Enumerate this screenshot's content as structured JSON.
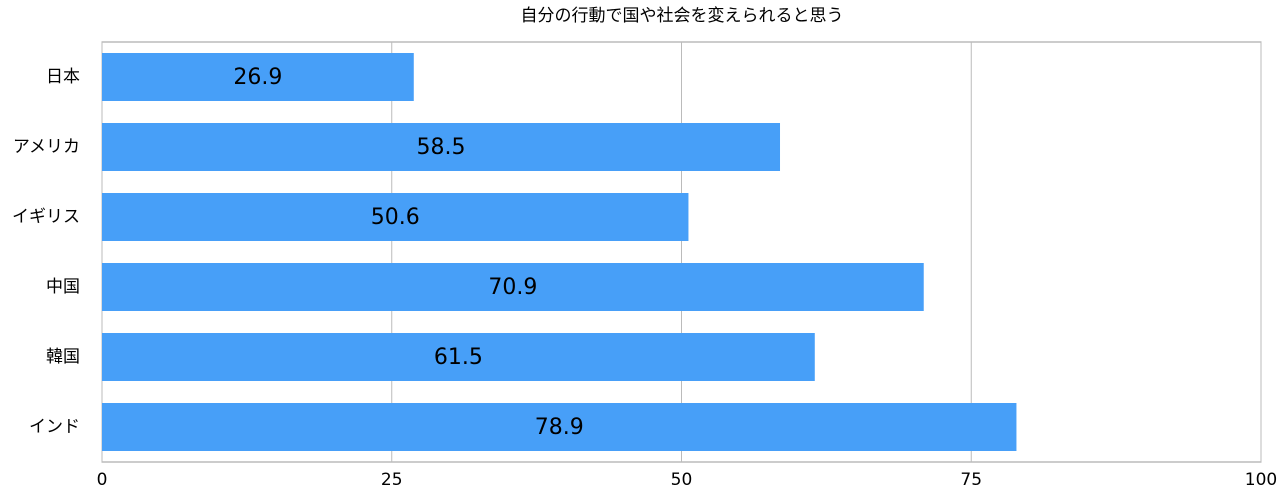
{
  "chart_data": {
    "type": "bar",
    "orientation": "horizontal",
    "title": "自分の行動で国や社会を変えられると思う",
    "categories": [
      "日本",
      "アメリカ",
      "イギリス",
      "中国",
      "韓国",
      "インド"
    ],
    "values": [
      26.9,
      58.5,
      50.6,
      70.9,
      61.5,
      78.9
    ],
    "color": "#479ff8",
    "xlim": [
      0,
      100
    ],
    "xticks": [
      0,
      25,
      50,
      75,
      100
    ],
    "grid": true
  }
}
